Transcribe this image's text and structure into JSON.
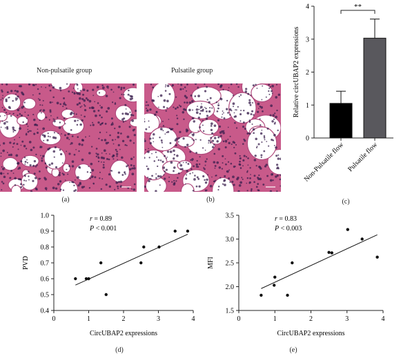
{
  "panels": {
    "a": {
      "title": "Non-pulsatile group",
      "caption": "(a)"
    },
    "b": {
      "title": "Pulsatile group",
      "caption": "(b)"
    },
    "c": {
      "caption": "(c)"
    },
    "d": {
      "caption": "(d)"
    },
    "e": {
      "caption": "(e)"
    }
  },
  "colors": {
    "tissue": "#c85a8a",
    "nuclei": "#3a1f4d",
    "lumen": "#ffffff",
    "bar_non_pulsatile": "#000000",
    "bar_pulsatile": "#59585d"
  },
  "chart_data": [
    {
      "type": "bar",
      "categories": [
        "Non-Pulsatile flow",
        "Pulsatile flow"
      ],
      "values": [
        1.05,
        3.03
      ],
      "errors": [
        0.37,
        0.58
      ],
      "ylabel": "Relative circUBAP2 expressions",
      "ylim": [
        0,
        4
      ],
      "yticks": [
        0,
        1,
        2,
        3,
        4
      ],
      "annotation": "**",
      "grid": false
    },
    {
      "type": "scatter",
      "x": [
        0.62,
        0.93,
        1.0,
        1.35,
        1.5,
        2.5,
        2.58,
        3.02,
        3.48,
        3.84
      ],
      "y": [
        0.6,
        0.6,
        0.6,
        0.7,
        0.5,
        0.7,
        0.8,
        0.8,
        0.9,
        0.9
      ],
      "fit": {
        "x": [
          0.62,
          3.84
        ],
        "y": [
          0.56,
          0.88
        ]
      },
      "xlabel": "CircUBAP2 expressions",
      "ylabel": "PVD",
      "xlim": [
        0,
        4
      ],
      "ylim": [
        0.4,
        1.0
      ],
      "xticks": [
        0,
        1,
        2,
        3,
        4
      ],
      "yticks": [
        0.4,
        0.5,
        0.6,
        0.7,
        0.8,
        0.9,
        1.0
      ],
      "annotation": {
        "r": "0.89",
        "p": "0.001"
      },
      "grid": false
    },
    {
      "type": "scatter",
      "x": [
        0.62,
        0.98,
        1.0,
        1.35,
        1.48,
        2.5,
        2.58,
        3.02,
        3.42,
        3.84
      ],
      "y": [
        1.82,
        2.03,
        2.2,
        1.82,
        2.5,
        2.72,
        2.71,
        3.2,
        3.0,
        2.62
      ],
      "fit": {
        "x": [
          0.62,
          3.84
        ],
        "y": [
          1.96,
          3.09
        ]
      },
      "xlabel": "CircUBAP2 expressions",
      "ylabel": "MFI",
      "xlim": [
        0,
        4
      ],
      "ylim": [
        1.5,
        3.5
      ],
      "xticks": [
        0,
        1,
        2,
        3,
        4
      ],
      "yticks": [
        1.5,
        2.0,
        2.5,
        3.0,
        3.5
      ],
      "annotation": {
        "r": "0.83",
        "p": "0.003"
      },
      "grid": false
    }
  ]
}
